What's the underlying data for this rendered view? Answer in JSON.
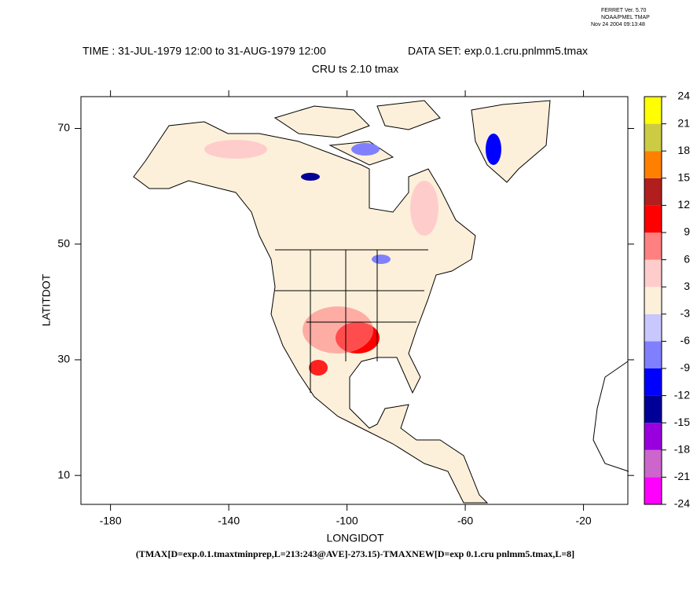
{
  "header": {
    "version": "FERRET Ver. 5.70",
    "org": "NOAA/PMEL TMAP",
    "timestamp": "Nov 24 2004 09:13:48"
  },
  "chart_data": {
    "type": "map",
    "title": "TIME : 31-JUL-1979 12:00 to 31-AUG-1979 12:00",
    "dataset": "DATA SET: exp.0.1.cru.pnlmm5.tmax",
    "subtitle": "CRU ts 2.10 tmax",
    "x_label": "LONGIDOT",
    "y_label": "LATITDOT",
    "footer": "(TMAX[D=exp.0.1.tmaxtminprep,L=213:243@AVE]-273.15)-TMAXNEW[D=exp 0.1.cru pnlmm5.tmax,L=8]",
    "xlim": [
      -190,
      -5
    ],
    "ylim": [
      5,
      75.5
    ],
    "xticks": [
      -180,
      -140,
      -100,
      -60,
      -20
    ],
    "yticks": [
      10,
      30,
      50,
      70
    ],
    "levels": [
      -24,
      -21,
      -18,
      -15,
      -12,
      -9,
      -6,
      -3,
      3,
      6,
      9,
      12,
      15,
      18,
      21,
      24
    ],
    "level_colors": [
      "#ff00ff",
      "#cc66cc",
      "#9900dd",
      "#000099",
      "#0000ff",
      "#8080ff",
      "#c8c8ff",
      "#fdf0da",
      "#ffcccc",
      "#ff8080",
      "#ff0000",
      "#b21e1e",
      "#ff8000",
      "#cccc44",
      "#ffff00"
    ]
  }
}
